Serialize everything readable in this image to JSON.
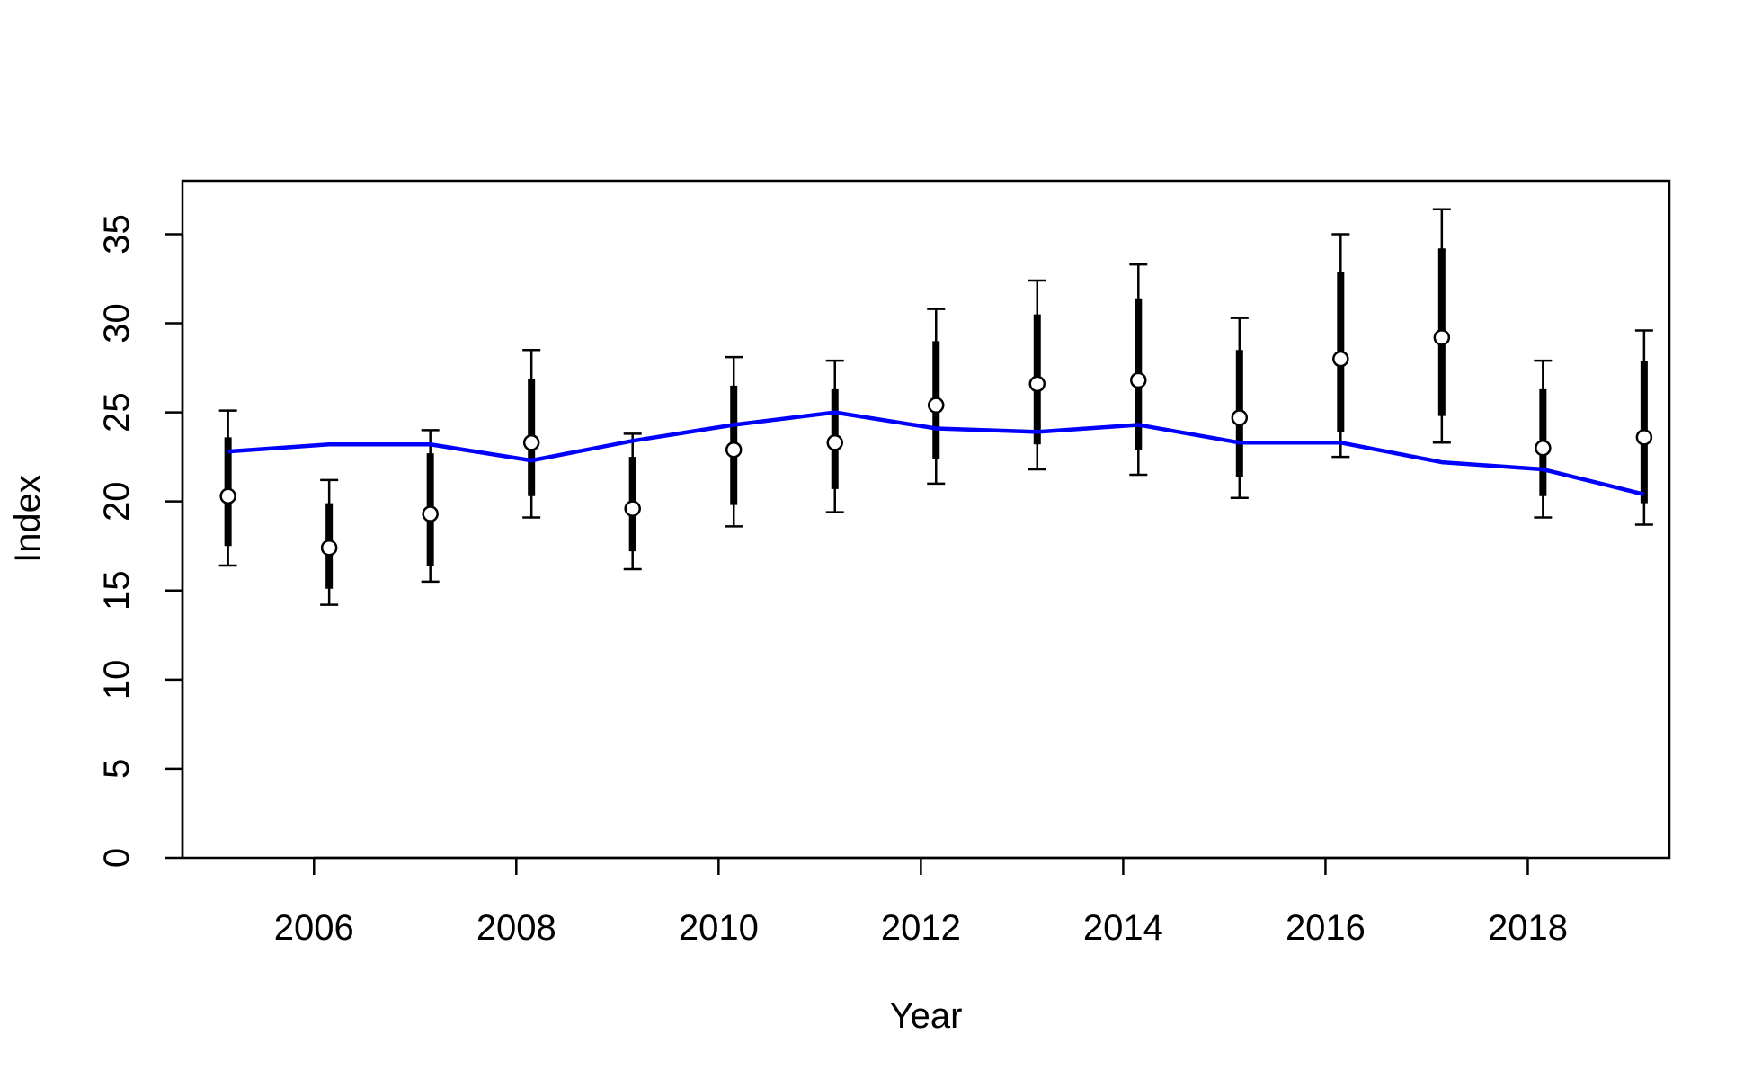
{
  "chart_data": {
    "type": "line",
    "title": "",
    "xlabel": "Year",
    "ylabel": "Index",
    "xlim": [
      2004.7,
      2019.4
    ],
    "ylim": [
      0,
      38
    ],
    "x_ticks": [
      2006,
      2008,
      2010,
      2012,
      2014,
      2016,
      2018
    ],
    "y_ticks": [
      0,
      5,
      10,
      15,
      20,
      25,
      30,
      35
    ],
    "grid": false,
    "legend": "none",
    "colors": {
      "observed": "#000000",
      "fitted": "#0000ff",
      "point_fill": "#ffffff"
    },
    "observed": [
      {
        "year": 2005.15,
        "value": 20.3,
        "inner": [
          17.5,
          23.6
        ],
        "outer": [
          16.4,
          25.1
        ]
      },
      {
        "year": 2006.15,
        "value": 17.4,
        "inner": [
          15.1,
          19.9
        ],
        "outer": [
          14.2,
          21.2
        ]
      },
      {
        "year": 2007.15,
        "value": 19.3,
        "inner": [
          16.4,
          22.7
        ],
        "outer": [
          15.5,
          24.0
        ]
      },
      {
        "year": 2008.15,
        "value": 23.3,
        "inner": [
          20.3,
          26.9
        ],
        "outer": [
          19.1,
          28.5
        ]
      },
      {
        "year": 2009.15,
        "value": 19.6,
        "inner": [
          17.2,
          22.5
        ],
        "outer": [
          16.2,
          23.8
        ]
      },
      {
        "year": 2010.15,
        "value": 22.9,
        "inner": [
          19.8,
          26.5
        ],
        "outer": [
          18.6,
          28.1
        ]
      },
      {
        "year": 2011.15,
        "value": 23.3,
        "inner": [
          20.7,
          26.3
        ],
        "outer": [
          19.4,
          27.9
        ]
      },
      {
        "year": 2012.15,
        "value": 25.4,
        "inner": [
          22.4,
          29.0
        ],
        "outer": [
          21.0,
          30.8
        ]
      },
      {
        "year": 2013.15,
        "value": 26.6,
        "inner": [
          23.2,
          30.5
        ],
        "outer": [
          21.8,
          32.4
        ]
      },
      {
        "year": 2014.15,
        "value": 26.8,
        "inner": [
          22.9,
          31.4
        ],
        "outer": [
          21.5,
          33.3
        ]
      },
      {
        "year": 2015.15,
        "value": 24.7,
        "inner": [
          21.4,
          28.5
        ],
        "outer": [
          20.2,
          30.3
        ]
      },
      {
        "year": 2016.15,
        "value": 28.0,
        "inner": [
          23.9,
          32.9
        ],
        "outer": [
          22.5,
          35.0
        ]
      },
      {
        "year": 2017.15,
        "value": 29.2,
        "inner": [
          24.8,
          34.2
        ],
        "outer": [
          23.3,
          36.4
        ]
      },
      {
        "year": 2018.15,
        "value": 23.0,
        "inner": [
          20.3,
          26.3
        ],
        "outer": [
          19.1,
          27.9
        ]
      },
      {
        "year": 2019.15,
        "value": 23.6,
        "inner": [
          19.9,
          27.9
        ],
        "outer": [
          18.7,
          29.6
        ]
      }
    ],
    "fitted": [
      {
        "year": 2005.15,
        "value": 22.8
      },
      {
        "year": 2006.15,
        "value": 23.2
      },
      {
        "year": 2007.15,
        "value": 23.2
      },
      {
        "year": 2008.15,
        "value": 22.3
      },
      {
        "year": 2009.15,
        "value": 23.4
      },
      {
        "year": 2010.15,
        "value": 24.3
      },
      {
        "year": 2011.15,
        "value": 25.0
      },
      {
        "year": 2012.15,
        "value": 24.1
      },
      {
        "year": 2013.15,
        "value": 23.9
      },
      {
        "year": 2014.15,
        "value": 24.3
      },
      {
        "year": 2015.15,
        "value": 23.3
      },
      {
        "year": 2016.15,
        "value": 23.3
      },
      {
        "year": 2017.15,
        "value": 22.2
      },
      {
        "year": 2018.15,
        "value": 21.8
      },
      {
        "year": 2019.15,
        "value": 20.4
      }
    ]
  }
}
